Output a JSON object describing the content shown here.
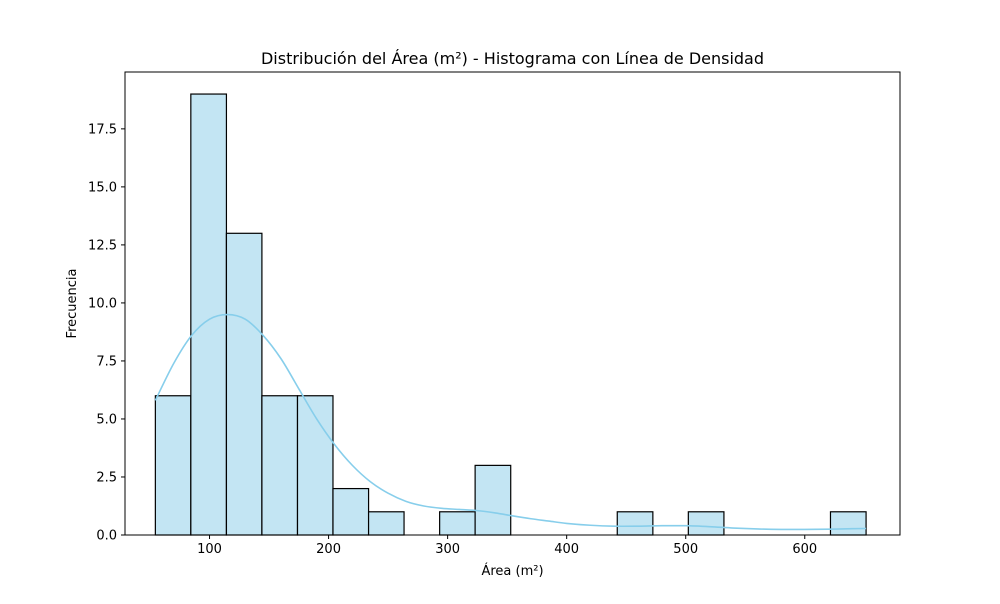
{
  "chart_data": {
    "type": "bar",
    "title": "Distribución del Área (m²) - Histograma con Línea de Densidad",
    "xlabel": "Área (m²)",
    "ylabel": "Frecuencia",
    "xlim": [
      29,
      680
    ],
    "ylim": [
      0,
      19.95
    ],
    "xticks": [
      100,
      200,
      300,
      400,
      500,
      600
    ],
    "xtick_labels": [
      "100",
      "200",
      "300",
      "400",
      "500",
      "600"
    ],
    "yticks": [
      0,
      2.5,
      5,
      7.5,
      10,
      12.5,
      15,
      17.5
    ],
    "ytick_labels": [
      "0.0",
      "2.5",
      "5.0",
      "7.5",
      "10.0",
      "12.5",
      "15.0",
      "17.5"
    ],
    "grid": false,
    "bins": [
      {
        "x0": 54.5,
        "x1": 84.3,
        "count": 6
      },
      {
        "x0": 84.3,
        "x1": 114.2,
        "count": 19
      },
      {
        "x0": 114.2,
        "x1": 144.0,
        "count": 13
      },
      {
        "x0": 144.0,
        "x1": 173.9,
        "count": 6
      },
      {
        "x0": 173.9,
        "x1": 203.7,
        "count": 6
      },
      {
        "x0": 203.7,
        "x1": 233.6,
        "count": 2
      },
      {
        "x0": 233.6,
        "x1": 263.4,
        "count": 1
      },
      {
        "x0": 263.4,
        "x1": 293.3,
        "count": 0
      },
      {
        "x0": 293.3,
        "x1": 323.1,
        "count": 1
      },
      {
        "x0": 323.1,
        "x1": 353.0,
        "count": 3
      },
      {
        "x0": 353.0,
        "x1": 382.8,
        "count": 0
      },
      {
        "x0": 382.8,
        "x1": 412.7,
        "count": 0
      },
      {
        "x0": 412.7,
        "x1": 442.5,
        "count": 0
      },
      {
        "x0": 442.5,
        "x1": 472.4,
        "count": 1
      },
      {
        "x0": 472.4,
        "x1": 502.2,
        "count": 0
      },
      {
        "x0": 502.2,
        "x1": 532.1,
        "count": 1
      },
      {
        "x0": 532.1,
        "x1": 561.9,
        "count": 0
      },
      {
        "x0": 561.9,
        "x1": 591.8,
        "count": 0
      },
      {
        "x0": 591.8,
        "x1": 621.6,
        "count": 0
      },
      {
        "x0": 621.6,
        "x1": 651.5,
        "count": 1
      }
    ],
    "density_curve": {
      "x": [
        54.5,
        70,
        85,
        100,
        115,
        130,
        145,
        160,
        175,
        190,
        205,
        220,
        235,
        250,
        265,
        280,
        295,
        310,
        325,
        340,
        355,
        370,
        385,
        400,
        420,
        440,
        460,
        480,
        500,
        520,
        540,
        560,
        580,
        600,
        620,
        640,
        651.5
      ],
      "y": [
        5.8,
        7.4,
        8.6,
        9.3,
        9.5,
        9.3,
        8.6,
        7.6,
        6.3,
        5.0,
        3.9,
        3.0,
        2.3,
        1.8,
        1.45,
        1.25,
        1.15,
        1.1,
        1.05,
        0.95,
        0.82,
        0.7,
        0.6,
        0.5,
        0.42,
        0.38,
        0.38,
        0.4,
        0.4,
        0.36,
        0.3,
        0.26,
        0.24,
        0.24,
        0.25,
        0.27,
        0.28
      ]
    },
    "colors": {
      "bar_fill": "#c3e5f3",
      "bar_edge": "#000000",
      "density_line": "#87ceeb"
    }
  }
}
